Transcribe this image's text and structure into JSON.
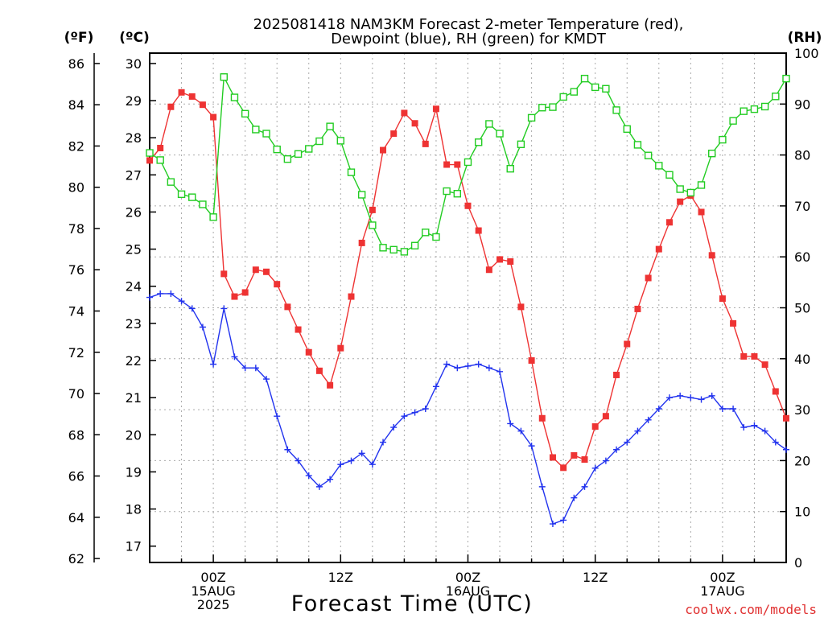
{
  "chart_data": {
    "type": "line",
    "title_line1": "2025081418 NAM3KM Forecast 2-meter Temperature (red),",
    "title_line2": "Dewpoint (blue), RH (green) for KMDT",
    "left_outer_unit": "(ºF)",
    "left_inner_unit": "(ºC)",
    "right_unit": "(RH)",
    "xlabel": "Forecast Time (UTC)",
    "credit": "coolwx.com/models",
    "x_ticks": [
      {
        "hour": 6,
        "l1": "00Z",
        "l2": "15AUG",
        "l3": "2025"
      },
      {
        "hour": 18,
        "l1": "12Z",
        "l2": "",
        "l3": ""
      },
      {
        "hour": 30,
        "l1": "00Z",
        "l2": "16AUG",
        "l3": ""
      },
      {
        "hour": 42,
        "l1": "12Z",
        "l2": "",
        "l3": ""
      },
      {
        "hour": 54,
        "l1": "00Z",
        "l2": "17AUG",
        "l3": ""
      }
    ],
    "x_range": [
      0,
      60
    ],
    "y_celsius_range": [
      16.56,
      30.28
    ],
    "y_fahrenheit_ticks": [
      62,
      64,
      66,
      68,
      70,
      72,
      74,
      76,
      78,
      80,
      82,
      84,
      86
    ],
    "y_celsius_ticks": [
      17,
      18,
      19,
      20,
      21,
      22,
      23,
      24,
      25,
      26,
      27,
      28,
      29,
      30
    ],
    "y_rh_range": [
      0,
      100
    ],
    "y_rh_ticks": [
      0,
      10,
      20,
      30,
      40,
      50,
      60,
      70,
      80,
      90,
      100
    ],
    "grid": true,
    "colors": {
      "temperature": "#ee3333",
      "dewpoint": "#2233ee",
      "rh": "#22cc22",
      "grid": "#aaaaaa"
    },
    "series": [
      {
        "key": "temperature",
        "unit": "°F",
        "values": [
          81.3,
          81.9,
          83.9,
          84.6,
          84.4,
          84.0,
          83.4,
          75.8,
          74.7,
          74.9,
          76.0,
          75.9,
          75.3,
          74.2,
          73.1,
          72.0,
          71.1,
          70.4,
          72.2,
          74.7,
          77.3,
          78.9,
          81.8,
          82.6,
          83.6,
          83.1,
          82.1,
          83.8,
          81.1,
          81.1,
          79.1,
          77.9,
          76.0,
          76.5,
          76.4,
          74.2,
          71.6,
          68.8,
          66.9,
          66.4,
          67.0,
          66.8,
          68.4,
          68.9,
          70.9,
          72.4,
          74.1,
          75.6,
          77.0,
          78.3,
          79.3,
          79.6,
          78.8,
          76.7,
          74.6,
          73.4,
          71.8,
          71.8,
          71.4,
          70.1,
          68.8
        ]
      },
      {
        "key": "dewpoint",
        "unit": "°C",
        "values": [
          23.7,
          23.8,
          23.8,
          23.6,
          23.4,
          22.9,
          21.9,
          23.4,
          22.1,
          21.8,
          21.8,
          21.5,
          20.5,
          19.6,
          19.3,
          18.9,
          18.6,
          18.8,
          19.2,
          19.3,
          19.5,
          19.2,
          19.8,
          20.2,
          20.5,
          20.6,
          20.7,
          21.3,
          21.9,
          21.8,
          21.85,
          21.9,
          21.8,
          21.7,
          20.3,
          20.1,
          19.7,
          18.6,
          17.6,
          17.7,
          18.3,
          18.6,
          19.1,
          19.3,
          19.6,
          19.8,
          20.1,
          20.4,
          20.7,
          21.0,
          21.05,
          21.0,
          20.95,
          21.05,
          20.7,
          20.7,
          20.2,
          20.25,
          20.1,
          19.8,
          19.6
        ]
      },
      {
        "key": "rh",
        "unit": "%",
        "values": [
          80.4,
          79.0,
          74.7,
          72.3,
          71.7,
          70.3,
          67.8,
          95.3,
          91.3,
          88.1,
          85.0,
          84.2,
          81.1,
          79.2,
          80.2,
          81.2,
          82.7,
          85.6,
          82.8,
          76.6,
          72.2,
          66.2,
          61.8,
          61.4,
          61.0,
          62.2,
          64.8,
          63.9,
          72.9,
          72.4,
          78.6,
          82.5,
          86.1,
          84.2,
          77.3,
          82.1,
          87.3,
          89.3,
          89.4,
          91.4,
          92.4,
          95.0,
          93.3,
          93.0,
          88.8,
          85.1,
          82.0,
          79.9,
          77.9,
          76.1,
          73.3,
          72.6,
          74.1,
          80.3,
          83.0,
          86.7,
          88.6,
          89.0,
          89.5,
          91.5,
          95.0
        ]
      }
    ]
  }
}
